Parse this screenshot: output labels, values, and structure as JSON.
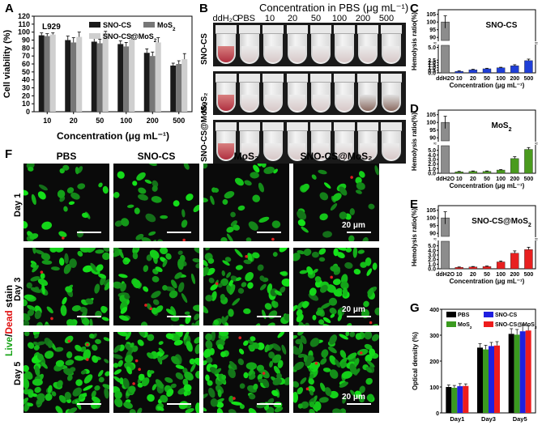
{
  "panels": {
    "A": "A",
    "B": "B",
    "C": "C",
    "D": "D",
    "E": "E",
    "F": "F",
    "G": "G"
  },
  "panelA": {
    "cell_line": "L929",
    "legend": [
      "SNO-CS",
      "MoS2",
      "SNO-CS@MoS2"
    ],
    "colors": [
      "#1a1a1a",
      "#777777",
      "#cfcfcf"
    ],
    "yaxis_label": "Cell viability (%)",
    "xaxis_label": "Concentration (μg mL⁻¹)"
  },
  "panelB": {
    "title": "Concentration in PBS (μg mL⁻¹)",
    "columns": [
      "ddH₂O",
      "PBS",
      "10",
      "20",
      "50",
      "100",
      "200",
      "500"
    ],
    "rows": [
      "SNO-CS",
      "MoS₂",
      "SNO-CS@MoS₂"
    ]
  },
  "panelCDE": {
    "yaxis_label": "Hemolysis ratio(%)",
    "xaxis_label": "Concentration (μg mL⁻¹)",
    "titles": [
      "SNO-CS",
      "MoS₂",
      "SNO-CS@MoS₂"
    ]
  },
  "panelF": {
    "columns": [
      "PBS",
      "SNO-CS",
      "MoS₂",
      "SNO-CS@MoS₂"
    ],
    "rows": [
      "Day 1",
      "Day 3",
      "Day 5"
    ],
    "side_label_live": "Live",
    "side_label_sep": "/",
    "side_label_dead": "Dead",
    "side_label_rest": " stain",
    "scalebar": "20 μm"
  },
  "panelG": {
    "yaxis_label": "Optical density (%)",
    "legend": [
      "PBS",
      "SNO-CS",
      "MoS₂",
      "SNO-CS@MoS₂"
    ],
    "colors": [
      "#000000",
      "#1f1fe0",
      "#3a9a1f",
      "#ee1c1c"
    ]
  },
  "chart_data": [
    {
      "type": "bar",
      "id": "A",
      "categories": [
        "10",
        "20",
        "50",
        "100",
        "200",
        "500"
      ],
      "series": [
        {
          "name": "SNO-CS",
          "values": [
            96,
            90,
            88,
            85,
            74,
            58
          ]
        },
        {
          "name": "MoS2",
          "values": [
            95,
            87,
            86,
            82,
            70,
            60
          ]
        },
        {
          "name": "SNO-CS@MoS2",
          "values": [
            97,
            94,
            99,
            91,
            87,
            66
          ]
        }
      ],
      "errors": [
        [
          3,
          5,
          5,
          4,
          5,
          3
        ],
        [
          3,
          6,
          5,
          5,
          5,
          4
        ],
        [
          2,
          6,
          2,
          5,
          6,
          7
        ]
      ],
      "ylim": [
        0,
        120
      ],
      "yticks": [
        0,
        10,
        20,
        30,
        40,
        50,
        60,
        70,
        80,
        90,
        100,
        110,
        120
      ]
    },
    {
      "type": "bar",
      "id": "C",
      "categories": [
        "ddH2O",
        "10",
        "20",
        "50",
        "100",
        "200",
        "500"
      ],
      "values": [
        100,
        0.3,
        0.6,
        0.8,
        1.0,
        1.4,
        2.4
      ],
      "errors": [
        4,
        0.1,
        0.1,
        0.1,
        0.1,
        0.2,
        0.3
      ],
      "yticks_low": [
        0,
        0.5,
        1.0,
        1.5,
        2.0,
        2.5,
        5.0
      ],
      "yticks_high": [
        90,
        95,
        100,
        105
      ],
      "color": "#1f3fd8"
    },
    {
      "type": "bar",
      "id": "D",
      "categories": [
        "ddH2O",
        "10",
        "20",
        "50",
        "100",
        "200",
        "500"
      ],
      "values": [
        100,
        0.3,
        0.4,
        0.4,
        0.7,
        3.2,
        5.2
      ],
      "errors": [
        4,
        0.1,
        0.1,
        0.1,
        0.1,
        0.4,
        0.4
      ],
      "yticks_low": [
        0,
        1,
        2,
        3,
        4,
        5
      ],
      "yticks_high": [
        90,
        95,
        100,
        105
      ],
      "color": "#4a9b1e"
    },
    {
      "type": "bar",
      "id": "E",
      "categories": [
        "ddH2O",
        "10",
        "20",
        "50",
        "100",
        "200",
        "500"
      ],
      "values": [
        100,
        0.3,
        0.4,
        0.5,
        1.5,
        3.4,
        4.2
      ],
      "errors": [
        4,
        0.1,
        0.1,
        0.1,
        0.2,
        0.5,
        0.5
      ],
      "yticks_low": [
        0,
        1,
        2,
        3,
        4,
        5
      ],
      "yticks_high": [
        90,
        95,
        100,
        105
      ],
      "color": "#e82020"
    },
    {
      "type": "bar",
      "id": "G",
      "categories": [
        "Day1",
        "Day3",
        "Day5"
      ],
      "series": [
        {
          "name": "PBS",
          "values": [
            100,
            252,
            305
          ]
        },
        {
          "name": "SNO-CS",
          "values": [
            103,
            258,
            315
          ]
        },
        {
          "name": "MoS2",
          "values": [
            97,
            245,
            302
          ]
        },
        {
          "name": "SNO-CS@MoS2",
          "values": [
            104,
            260,
            318
          ]
        }
      ],
      "errors": [
        [
          8,
          15,
          20
        ],
        [
          10,
          14,
          25
        ],
        [
          9,
          16,
          20
        ],
        [
          8,
          15,
          18
        ]
      ],
      "ylim": [
        0,
        400
      ],
      "yticks": [
        0,
        100,
        200,
        300,
        400
      ]
    }
  ]
}
